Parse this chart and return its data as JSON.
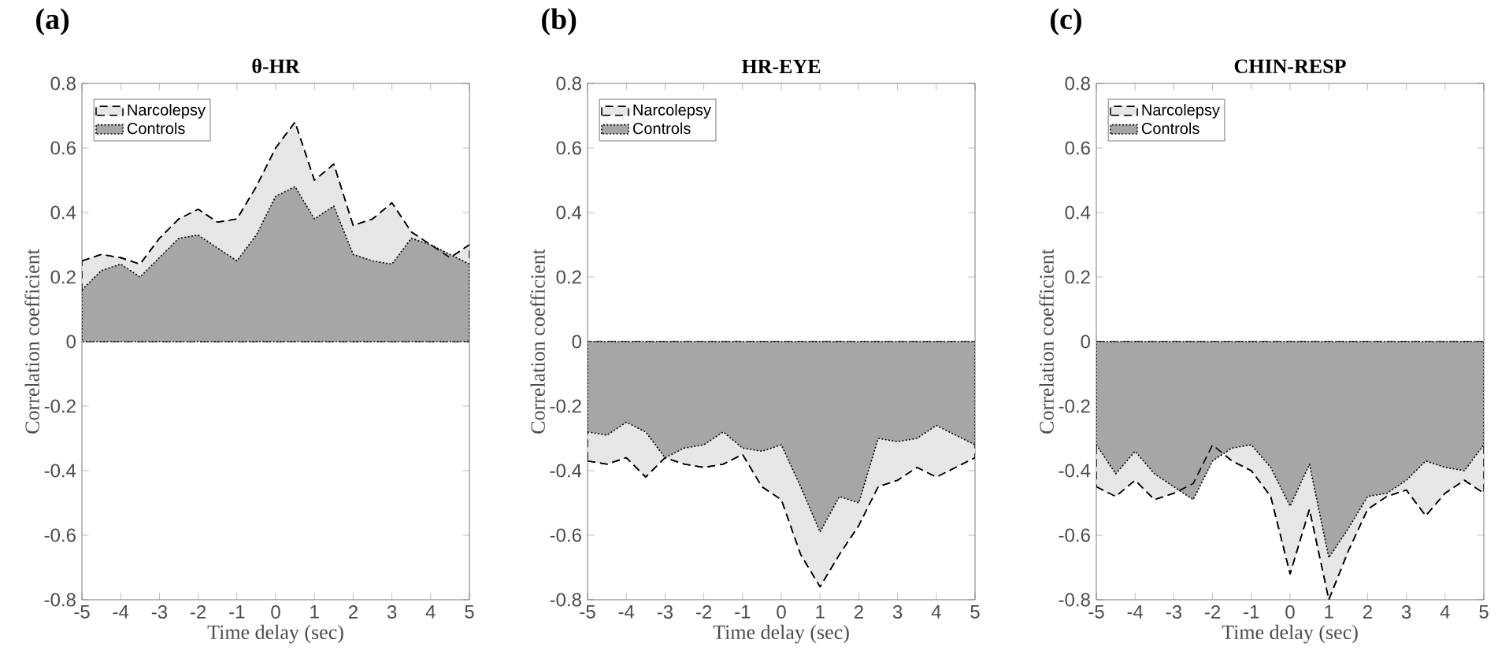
{
  "chart_data": [
    {
      "type": "area",
      "title": "θ-HR",
      "xlabel": "Time delay (sec)",
      "ylabel": "Correlation coefficient",
      "annotations": [
        "(a)"
      ],
      "x": [
        -5,
        -4.5,
        -4,
        -3.5,
        -3,
        -2.5,
        -2,
        -1.5,
        -1,
        -0.5,
        0,
        0.5,
        1,
        1.5,
        2,
        2.5,
        3,
        3.5,
        4,
        4.5,
        5
      ],
      "series": [
        {
          "name": "Narcolepsy",
          "color": "#e6e6e6",
          "line_style": "dashed",
          "values": [
            0.25,
            0.27,
            0.26,
            0.24,
            0.32,
            0.38,
            0.41,
            0.37,
            0.38,
            0.48,
            0.6,
            0.68,
            0.5,
            0.55,
            0.36,
            0.38,
            0.43,
            0.34,
            0.3,
            0.26,
            0.3
          ]
        },
        {
          "name": "Controls",
          "color": "#a6a6a6",
          "line_style": "dotted",
          "values": [
            0.16,
            0.22,
            0.24,
            0.2,
            0.26,
            0.32,
            0.33,
            0.29,
            0.25,
            0.33,
            0.45,
            0.48,
            0.38,
            0.42,
            0.27,
            0.25,
            0.24,
            0.32,
            0.3,
            0.27,
            0.24
          ]
        }
      ],
      "xlim": [
        -5,
        5
      ],
      "ylim": [
        -0.8,
        0.8
      ],
      "xticks": [
        -5,
        -4,
        -3,
        -2,
        -1,
        0,
        1,
        2,
        3,
        4,
        5
      ],
      "yticks": [
        -0.8,
        -0.6,
        -0.4,
        -0.2,
        0,
        0.2,
        0.4,
        0.6,
        0.8
      ],
      "legend": "top left"
    },
    {
      "type": "area",
      "title": "HR-EYE",
      "xlabel": "Time delay (sec)",
      "ylabel": "Correlation coefficient",
      "annotations": [
        "(b)"
      ],
      "x": [
        -5,
        -4.5,
        -4,
        -3.5,
        -3,
        -2.5,
        -2,
        -1.5,
        -1,
        -0.5,
        0,
        0.5,
        1,
        1.5,
        2,
        2.5,
        3,
        3.5,
        4,
        4.5,
        5
      ],
      "series": [
        {
          "name": "Narcolepsy",
          "color": "#e6e6e6",
          "line_style": "dashed",
          "values": [
            -0.37,
            -0.38,
            -0.36,
            -0.42,
            -0.36,
            -0.38,
            -0.39,
            -0.38,
            -0.35,
            -0.45,
            -0.49,
            -0.66,
            -0.76,
            -0.66,
            -0.57,
            -0.45,
            -0.43,
            -0.39,
            -0.42,
            -0.39,
            -0.36
          ]
        },
        {
          "name": "Controls",
          "color": "#a6a6a6",
          "line_style": "dotted",
          "values": [
            -0.28,
            -0.29,
            -0.25,
            -0.28,
            -0.36,
            -0.33,
            -0.32,
            -0.28,
            -0.33,
            -0.34,
            -0.32,
            -0.45,
            -0.59,
            -0.48,
            -0.5,
            -0.3,
            -0.31,
            -0.3,
            -0.26,
            -0.29,
            -0.32
          ]
        }
      ],
      "xlim": [
        -5,
        5
      ],
      "ylim": [
        -0.8,
        0.8
      ],
      "xticks": [
        -5,
        -4,
        -3,
        -2,
        -1,
        0,
        1,
        2,
        3,
        4,
        5
      ],
      "yticks": [
        -0.8,
        -0.6,
        -0.4,
        -0.2,
        0,
        0.2,
        0.4,
        0.6,
        0.8
      ],
      "legend": "top left"
    },
    {
      "type": "area",
      "title": "CHIN-RESP",
      "xlabel": "Time delay (sec)",
      "ylabel": "Correlation coefficient",
      "annotations": [
        "(c)"
      ],
      "x": [
        -5,
        -4.5,
        -4,
        -3.5,
        -3,
        -2.5,
        -2,
        -1.5,
        -1,
        -0.5,
        0,
        0.5,
        1,
        1.5,
        2,
        2.5,
        3,
        3.5,
        4,
        4.5,
        5
      ],
      "series": [
        {
          "name": "Narcolepsy",
          "color": "#e6e6e6",
          "line_style": "dashed",
          "values": [
            -0.45,
            -0.48,
            -0.43,
            -0.49,
            -0.47,
            -0.44,
            -0.32,
            -0.37,
            -0.4,
            -0.48,
            -0.72,
            -0.52,
            -0.8,
            -0.65,
            -0.52,
            -0.48,
            -0.46,
            -0.54,
            -0.47,
            -0.43,
            -0.47
          ]
        },
        {
          "name": "Controls",
          "color": "#a6a6a6",
          "line_style": "dotted",
          "values": [
            -0.32,
            -0.41,
            -0.34,
            -0.41,
            -0.45,
            -0.49,
            -0.37,
            -0.33,
            -0.32,
            -0.39,
            -0.51,
            -0.38,
            -0.67,
            -0.58,
            -0.48,
            -0.47,
            -0.43,
            -0.37,
            -0.39,
            -0.4,
            -0.32
          ]
        }
      ],
      "xlim": [
        -5,
        5
      ],
      "ylim": [
        -0.8,
        0.8
      ],
      "xticks": [
        -5,
        -4,
        -3,
        -2,
        -1,
        0,
        1,
        2,
        3,
        4,
        5
      ],
      "yticks": [
        -0.8,
        -0.6,
        -0.4,
        -0.2,
        0,
        0.2,
        0.4,
        0.6,
        0.8
      ],
      "legend": "top left"
    }
  ]
}
